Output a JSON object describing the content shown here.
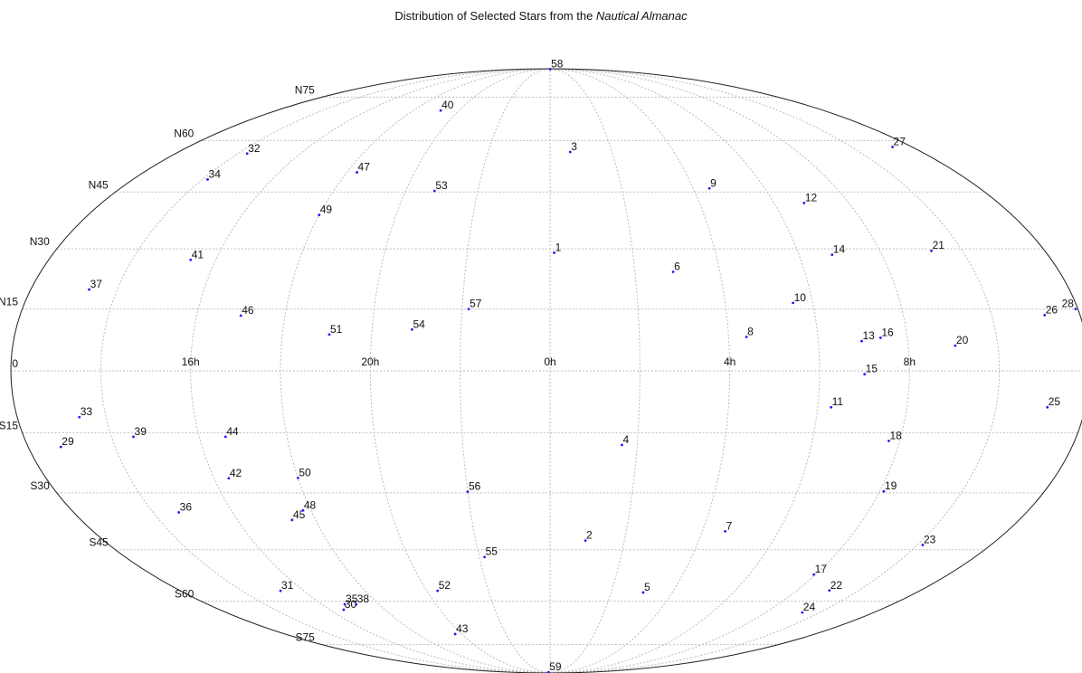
{
  "title": {
    "prefix": "Distribution of Selected Stars from the ",
    "emphasis": "Nautical Almanac"
  },
  "chart_data": {
    "type": "scatter",
    "projection": "mollweide",
    "center_ra_hours": 0,
    "ra_direction": "increasing-right",
    "x_unit": "hours of right ascension",
    "y_unit": "degrees of declination",
    "grid": true,
    "meridian_hours": [
      12,
      14,
      16,
      18,
      20,
      22,
      0,
      2,
      4,
      6,
      8,
      10,
      12
    ],
    "parallel_degrees": [
      -75,
      -60,
      -45,
      -30,
      -15,
      0,
      15,
      30,
      45,
      60,
      75
    ],
    "ra_labels": [
      {
        "text": "16h",
        "ra": 16
      },
      {
        "text": "20h",
        "ra": 20
      },
      {
        "text": "0h",
        "ra": 0
      },
      {
        "text": "4h",
        "ra": 4
      },
      {
        "text": "8h",
        "ra": 8
      }
    ],
    "dec_labels": [
      {
        "text": "N75",
        "dec": 75
      },
      {
        "text": "N60",
        "dec": 60
      },
      {
        "text": "N45",
        "dec": 45
      },
      {
        "text": "N30",
        "dec": 30
      },
      {
        "text": "N15",
        "dec": 15
      },
      {
        "text": "0",
        "dec": 0
      },
      {
        "text": "S15",
        "dec": -15
      },
      {
        "text": "S30",
        "dec": -30
      },
      {
        "text": "S45",
        "dec": -45
      },
      {
        "text": "S60",
        "dec": -60
      },
      {
        "text": "S75",
        "dec": -75
      }
    ],
    "colors": {
      "point": "#1a1aff",
      "grid": "#bbbbbb",
      "outline": "#222222"
    },
    "stars": [
      {
        "label": "1",
        "ra": 0.1,
        "dec": 29.0
      },
      {
        "label": "2",
        "ra": 0.95,
        "dec": -42.5
      },
      {
        "label": "3",
        "ra": 0.65,
        "dec": 56.5
      },
      {
        "label": "4",
        "ra": 1.65,
        "dec": -18.0
      },
      {
        "label": "5",
        "ra": 3.05,
        "dec": -57.3
      },
      {
        "label": "6",
        "ra": 2.9,
        "dec": 24.2
      },
      {
        "label": "7",
        "ra": 4.6,
        "dec": -40.0
      },
      {
        "label": "8",
        "ra": 4.4,
        "dec": 8.2
      },
      {
        "label": "9",
        "ra": 4.45,
        "dec": 46.0
      },
      {
        "label": "10",
        "ra": 5.55,
        "dec": 16.5
      },
      {
        "label": "11",
        "ra": 6.3,
        "dec": -8.8
      },
      {
        "label": "12",
        "ra": 6.8,
        "dec": 42.0
      },
      {
        "label": "13",
        "ra": 6.97,
        "dec": 7.2
      },
      {
        "label": "14",
        "ra": 6.8,
        "dec": 28.5
      },
      {
        "label": "15",
        "ra": 7.0,
        "dec": -0.8
      },
      {
        "label": "16",
        "ra": 7.4,
        "dec": 8.0
      },
      {
        "label": "17",
        "ra": 7.95,
        "dec": -52.0
      },
      {
        "label": "18",
        "ra": 7.75,
        "dec": -17.0
      },
      {
        "label": "19",
        "ra": 8.1,
        "dec": -29.6
      },
      {
        "label": "20",
        "ra": 9.05,
        "dec": 6.1
      },
      {
        "label": "21",
        "ra": 9.25,
        "dec": 29.5
      },
      {
        "label": "22",
        "ra": 9.05,
        "dec": -56.7
      },
      {
        "label": "23",
        "ra": 10.15,
        "dec": -43.7
      },
      {
        "label": "24",
        "ra": 9.35,
        "dec": -63.6
      },
      {
        "label": "25",
        "ra": 11.15,
        "dec": -8.8
      },
      {
        "label": "26",
        "ra": 11.2,
        "dec": 13.5
      },
      {
        "label": "27",
        "ra": 11.35,
        "dec": 58.0
      },
      {
        "label": "28",
        "ra": 11.95,
        "dec": 15.0
      },
      {
        "label": "29",
        "ra": 12.75,
        "dec": -18.5
      },
      {
        "label": "30",
        "ra": 16.5,
        "dec": -62.7
      },
      {
        "label": "31",
        "ra": 15.25,
        "dec": -56.8
      },
      {
        "label": "32",
        "ra": 14.3,
        "dec": 56.0
      },
      {
        "label": "33",
        "ra": 13.4,
        "dec": -11.2
      },
      {
        "label": "34",
        "ra": 14.15,
        "dec": 48.5
      },
      {
        "label": "35",
        "ra": 16.8,
        "dec": -61.0
      },
      {
        "label": "36",
        "ra": 14.65,
        "dec": -35.0
      },
      {
        "label": "37",
        "ra": 13.35,
        "dec": 19.8
      },
      {
        "label": "38",
        "ra": 17.2,
        "dec": -61.0
      },
      {
        "label": "39",
        "ra": 14.5,
        "dec": -16.0
      },
      {
        "label": "40",
        "ra": 19.2,
        "dec": 70.0
      },
      {
        "label": "41",
        "ra": 15.4,
        "dec": 27.2
      },
      {
        "label": "42",
        "ra": 16.35,
        "dec": -26.3
      },
      {
        "label": "43",
        "ra": 19.7,
        "dec": -71.0
      },
      {
        "label": "44",
        "ra": 16.6,
        "dec": -16.0
      },
      {
        "label": "45",
        "ra": 17.4,
        "dec": -37.0
      },
      {
        "label": "46",
        "ra": 17.0,
        "dec": 13.4
      },
      {
        "label": "47",
        "ra": 18.3,
        "dec": 50.5
      },
      {
        "label": "48",
        "ra": 17.8,
        "dec": -34.5
      },
      {
        "label": "49",
        "ra": 18.0,
        "dec": 38.8
      },
      {
        "label": "50",
        "ra": 18.0,
        "dec": -26.2
      },
      {
        "label": "51",
        "ra": 19.05,
        "dec": 8.8
      },
      {
        "label": "52",
        "ra": 20.35,
        "dec": -56.8
      },
      {
        "label": "53",
        "ra": 20.8,
        "dec": 45.3
      },
      {
        "label": "54",
        "ra": 20.9,
        "dec": 10.0
      },
      {
        "label": "55",
        "ra": 22.15,
        "dec": -47.0
      },
      {
        "label": "56",
        "ra": 22.0,
        "dec": -29.7
      },
      {
        "label": "57",
        "ra": 22.15,
        "dec": 15.0
      },
      {
        "label": "58",
        "ra": 0.05,
        "dec": 89.3
      },
      {
        "label": "59",
        "ra": 23.5,
        "dec": -89.0
      }
    ]
  }
}
